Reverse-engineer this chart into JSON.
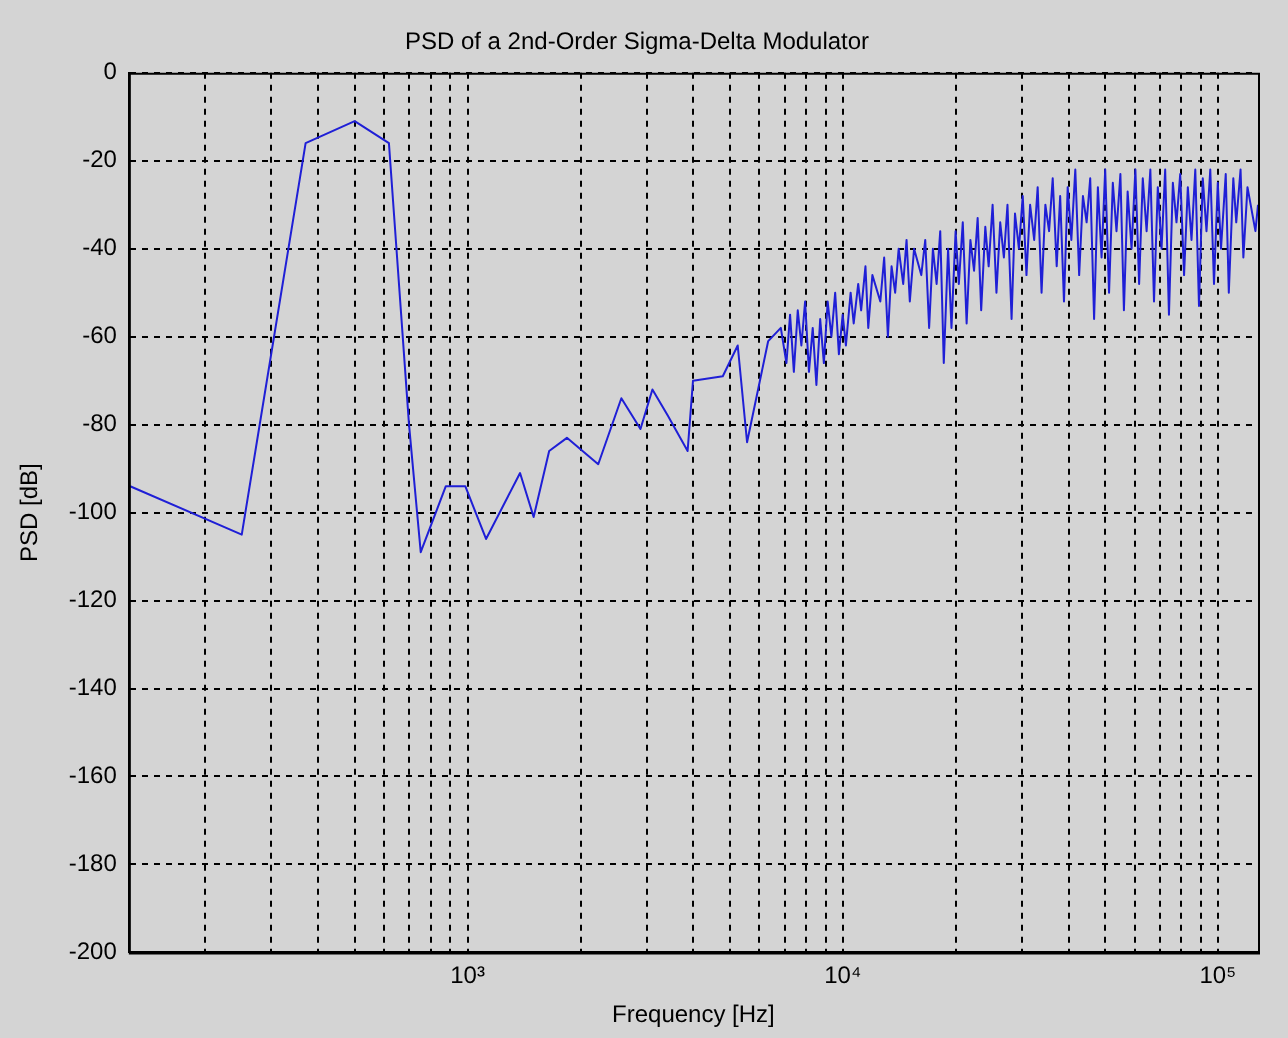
{
  "chart_data": {
    "type": "line",
    "title": "PSD of a 2nd-Order Sigma-Delta Modulator",
    "xlabel": "Frequency [Hz]",
    "ylabel": "PSD [dB]",
    "log": "x",
    "grid": true,
    "marker": "none",
    "x": [
      126,
      250,
      370,
      500,
      617,
      698,
      750,
      875,
      986,
      1120,
      1380,
      1500,
      1650,
      1840,
      2230,
      2570,
      2890,
      3110,
      3420,
      3860,
      3990,
      4790,
      5250,
      5560,
      6330,
      6840,
      7080,
      7240,
      7410,
      7590,
      7760,
      7940,
      8130,
      8320,
      8510,
      8710,
      8910,
      9120,
      9330,
      9550,
      9770,
      10000,
      10200,
      10500,
      10700,
      11000,
      11200,
      11500,
      11700,
      12000,
      12600,
      12900,
      13200,
      13500,
      13800,
      14100,
      14500,
      14800,
      15100,
      15500,
      16200,
      16600,
      17000,
      17400,
      17800,
      18200,
      18600,
      19100,
      19500,
      20000,
      20400,
      20900,
      21400,
      21900,
      22400,
      22900,
      23400,
      24000,
      24500,
      25100,
      25700,
      26300,
      26900,
      27500,
      28200,
      28800,
      29500,
      30200,
      30900,
      31600,
      32400,
      33100,
      33900,
      34700,
      35500,
      36300,
      37200,
      38000,
      38900,
      39800,
      40700,
      41700,
      42700,
      43700,
      44700,
      45700,
      46800,
      47900,
      49000,
      50100,
      51300,
      52500,
      53700,
      55000,
      56200,
      57500,
      58900,
      60300,
      61700,
      63100,
      64600,
      66100,
      67600,
      69200,
      70800,
      72400,
      74100,
      75900,
      77600,
      79400,
      81300,
      83200,
      85100,
      87100,
      89100,
      91200,
      93300,
      95500,
      97700,
      100000,
      102000,
      105000,
      107000,
      110000,
      112000,
      115000,
      117000,
      120000,
      126000,
      128000
    ],
    "series": [
      {
        "color": "#1f1fd6",
        "values": [
          -94,
          -105,
          -16,
          -11,
          -16,
          -80,
          -109,
          -94,
          -94,
          -106,
          -91,
          -101,
          -86,
          -83,
          -89,
          -74,
          -81,
          -72,
          -78,
          -86,
          -70,
          -69,
          -62,
          -84,
          -61,
          -58,
          -66,
          -55,
          -68,
          -54,
          -62,
          -52,
          -68,
          -58,
          -71,
          -56,
          -66,
          -52,
          -60,
          -50,
          -64,
          -55,
          -62,
          -50,
          -57,
          -48,
          -54,
          -44,
          -58,
          -46,
          -52,
          -42,
          -60,
          -44,
          -50,
          -40,
          -48,
          -38,
          -52,
          -40,
          -46,
          -38,
          -58,
          -40,
          -48,
          -36,
          -66,
          -40,
          -58,
          -36,
          -48,
          -34,
          -57,
          -38,
          -45,
          -33,
          -54,
          -35,
          -44,
          -30,
          -50,
          -34,
          -42,
          -30,
          -56,
          -32,
          -40,
          -28,
          -46,
          -30,
          -38,
          -26,
          -50,
          -30,
          -36,
          -24,
          -44,
          -28,
          -52,
          -26,
          -38,
          -22,
          -46,
          -28,
          -34,
          -24,
          -56,
          -26,
          -42,
          -22,
          -50,
          -25,
          -36,
          -23,
          -54,
          -27,
          -40,
          -22,
          -48,
          -24,
          -36,
          -22,
          -52,
          -26,
          -40,
          -22,
          -55,
          -25,
          -34,
          -23,
          -46,
          -26,
          -38,
          -22,
          -53,
          -24,
          -36,
          -22,
          -48,
          -25,
          -40,
          -23,
          -50,
          -24,
          -34,
          -22,
          -42,
          -26,
          -36,
          -30
        ]
      }
    ],
    "xlim": [
      125,
      128000
    ],
    "xticks": [
      {
        "value": 200,
        "label": null
      },
      {
        "value": 300,
        "label": null
      },
      {
        "value": 400,
        "label": null
      },
      {
        "value": 500,
        "label": null
      },
      {
        "value": 600,
        "label": null
      },
      {
        "value": 700,
        "label": null
      },
      {
        "value": 800,
        "label": null
      },
      {
        "value": 900,
        "label": null
      },
      {
        "value": 1000,
        "label": "10³"
      },
      {
        "value": 2000,
        "label": null
      },
      {
        "value": 3000,
        "label": null
      },
      {
        "value": 4000,
        "label": null
      },
      {
        "value": 5000,
        "label": null
      },
      {
        "value": 6000,
        "label": null
      },
      {
        "value": 7000,
        "label": null
      },
      {
        "value": 8000,
        "label": null
      },
      {
        "value": 9000,
        "label": null
      },
      {
        "value": 10000,
        "label": "10⁴"
      },
      {
        "value": 20000,
        "label": null
      },
      {
        "value": 30000,
        "label": null
      },
      {
        "value": 40000,
        "label": null
      },
      {
        "value": 50000,
        "label": null
      },
      {
        "value": 60000,
        "label": null
      },
      {
        "value": 70000,
        "label": null
      },
      {
        "value": 80000,
        "label": null
      },
      {
        "value": 90000,
        "label": null
      },
      {
        "value": 100000,
        "label": "10⁵"
      }
    ],
    "ylim": [
      -200,
      0
    ],
    "yticks": [
      -200,
      -180,
      -160,
      -140,
      -120,
      -100,
      -80,
      -60,
      -40,
      -20,
      0
    ]
  }
}
